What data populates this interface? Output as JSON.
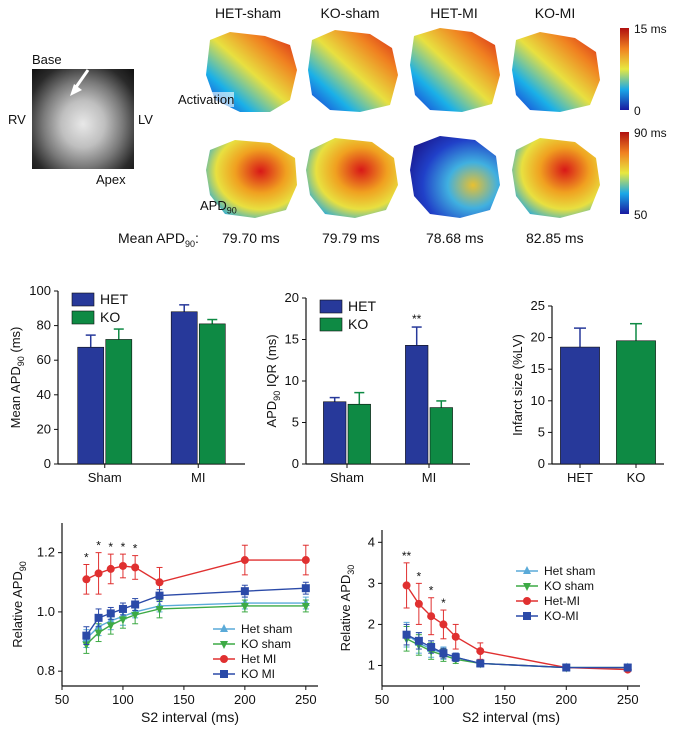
{
  "panel_a": {
    "photo_labels": {
      "base": "Base",
      "rv": "RV",
      "lv": "LV",
      "apex": "Apex"
    },
    "groups": [
      "HET-sham",
      "KO-sham",
      "HET-MI",
      "KO-MI"
    ],
    "row_labels": {
      "activation": "Activation",
      "apd90_main": "APD",
      "apd90_sub": "90"
    },
    "scale_activation": {
      "max": "15 ms",
      "min": "0"
    },
    "scale_apd": {
      "max": "90 ms",
      "min": "50"
    },
    "mean_label_main": "Mean APD",
    "mean_label_sub": "90",
    "mean_label_suffix": ":",
    "mean_values": [
      "79.70 ms",
      "79.79 ms",
      "78.68 ms",
      "82.85 ms"
    ]
  },
  "chart_data": [
    {
      "type": "bar",
      "ylabel_main": "Mean APD",
      "ylabel_sub": "90",
      "ylabel_suffix": " (ms)",
      "categories": [
        "Sham",
        "MI"
      ],
      "ylim": [
        0,
        100
      ],
      "yticks": [
        0,
        20,
        40,
        60,
        80,
        100
      ],
      "legend": "top-left",
      "series": [
        {
          "name": "HET",
          "color": "#27399a",
          "values": [
            67.5,
            88
          ],
          "errors": [
            7,
            4
          ]
        },
        {
          "name": "KO",
          "color": "#0e8a44",
          "values": [
            72,
            81
          ],
          "errors": [
            6,
            2.5
          ]
        }
      ]
    },
    {
      "type": "bar",
      "ylabel_main": "APD",
      "ylabel_sub": "90",
      "ylabel_suffix": " IQR (ms)",
      "categories": [
        "Sham",
        "MI"
      ],
      "ylim": [
        0,
        20
      ],
      "yticks": [
        0,
        5,
        10,
        15,
        20
      ],
      "legend": "top-left",
      "annotation": "**",
      "series": [
        {
          "name": "HET",
          "color": "#27399a",
          "values": [
            7.5,
            14.3
          ],
          "errors": [
            0.5,
            2.2
          ]
        },
        {
          "name": "KO",
          "color": "#0e8a44",
          "values": [
            7.2,
            6.8
          ],
          "errors": [
            1.4,
            0.8
          ]
        }
      ]
    },
    {
      "type": "bar",
      "ylabel": "Infarct size (%LV)",
      "categories": [
        "HET",
        "KO"
      ],
      "ylim": [
        0,
        25
      ],
      "yticks": [
        0,
        5,
        10,
        15,
        20,
        25
      ],
      "colors": [
        "#27399a",
        "#0e8a44"
      ],
      "values": [
        18.5,
        19.5
      ],
      "errors": [
        3,
        2.7
      ]
    },
    {
      "type": "line",
      "ylabel_main": "Relative APD",
      "ylabel_sub": "90",
      "xlabel": "S2 interval (ms)",
      "xlim": [
        50,
        260
      ],
      "xticks": [
        50,
        100,
        150,
        200,
        250
      ],
      "ylim": [
        0.75,
        1.3
      ],
      "yticks": [
        0.8,
        1.0,
        1.2
      ],
      "ytick_labels": [
        "0.8",
        "1.0",
        "1.2"
      ],
      "legend": "bottom-right",
      "x": [
        70,
        80,
        90,
        100,
        110,
        130,
        200,
        250
      ],
      "stars_x": [
        70,
        80,
        90,
        100,
        110
      ],
      "star": "*",
      "series": [
        {
          "name": "Het sham",
          "color": "#5aaad8",
          "marker": "triangle",
          "values": [
            0.91,
            0.95,
            0.97,
            0.985,
            1.0,
            1.02,
            1.03,
            1.03
          ],
          "errors": [
            0.03,
            0.03,
            0.03,
            0.03,
            0.02,
            0.02,
            0.02,
            0.02
          ]
        },
        {
          "name": "KO sham",
          "color": "#3daa45",
          "marker": "triangle-down",
          "values": [
            0.89,
            0.93,
            0.955,
            0.975,
            0.99,
            1.01,
            1.02,
            1.02
          ],
          "errors": [
            0.03,
            0.03,
            0.03,
            0.03,
            0.03,
            0.03,
            0.02,
            0.02
          ]
        },
        {
          "name": "Het MI",
          "color": "#e03030",
          "marker": "circle",
          "values": [
            1.11,
            1.13,
            1.145,
            1.155,
            1.15,
            1.1,
            1.175,
            1.175
          ],
          "errors": [
            0.05,
            0.07,
            0.05,
            0.04,
            0.04,
            0.05,
            0.05,
            0.05
          ]
        },
        {
          "name": "KO MI",
          "color": "#2b4aa8",
          "marker": "square",
          "values": [
            0.92,
            0.98,
            0.995,
            1.01,
            1.025,
            1.055,
            1.07,
            1.08
          ],
          "errors": [
            0.03,
            0.03,
            0.02,
            0.02,
            0.02,
            0.02,
            0.02,
            0.02
          ]
        }
      ]
    },
    {
      "type": "line",
      "ylabel_main": "Relative APD",
      "ylabel_sub": "30",
      "xlabel": "S2 interval (ms)",
      "xlim": [
        50,
        260
      ],
      "xticks": [
        50,
        100,
        150,
        200,
        250
      ],
      "ylim": [
        0.5,
        4.3
      ],
      "yticks": [
        1,
        2,
        3,
        4
      ],
      "legend": "top-right",
      "x": [
        70,
        80,
        90,
        100,
        110,
        130,
        200,
        250
      ],
      "stars": [
        {
          "x": 70,
          "label": "**"
        },
        {
          "x": 80,
          "label": "*"
        },
        {
          "x": 90,
          "label": "*"
        },
        {
          "x": 100,
          "label": "*"
        }
      ],
      "series": [
        {
          "name": "Het sham",
          "color": "#5aaad8",
          "marker": "triangle",
          "values": [
            1.75,
            1.55,
            1.4,
            1.3,
            1.2,
            1.05,
            0.95,
            0.95
          ],
          "errors": [
            0.3,
            0.25,
            0.2,
            0.15,
            0.1,
            0.08,
            0.05,
            0.05
          ]
        },
        {
          "name": "KO sham",
          "color": "#3daa45",
          "marker": "triangle-down",
          "values": [
            1.65,
            1.5,
            1.35,
            1.25,
            1.15,
            1.05,
            0.95,
            0.95
          ],
          "errors": [
            0.3,
            0.25,
            0.2,
            0.15,
            0.1,
            0.08,
            0.05,
            0.05
          ]
        },
        {
          "name": "Het-MI",
          "color": "#e03030",
          "marker": "circle",
          "values": [
            2.95,
            2.5,
            2.2,
            2.0,
            1.7,
            1.35,
            0.95,
            0.9
          ],
          "errors": [
            0.55,
            0.5,
            0.45,
            0.35,
            0.3,
            0.2,
            0.05,
            0.05
          ]
        },
        {
          "name": "KO-MI",
          "color": "#2b4aa8",
          "marker": "square",
          "values": [
            1.75,
            1.6,
            1.45,
            1.3,
            1.2,
            1.05,
            0.95,
            0.95
          ],
          "errors": [
            0.25,
            0.2,
            0.15,
            0.12,
            0.1,
            0.08,
            0.05,
            0.05
          ]
        }
      ]
    }
  ]
}
